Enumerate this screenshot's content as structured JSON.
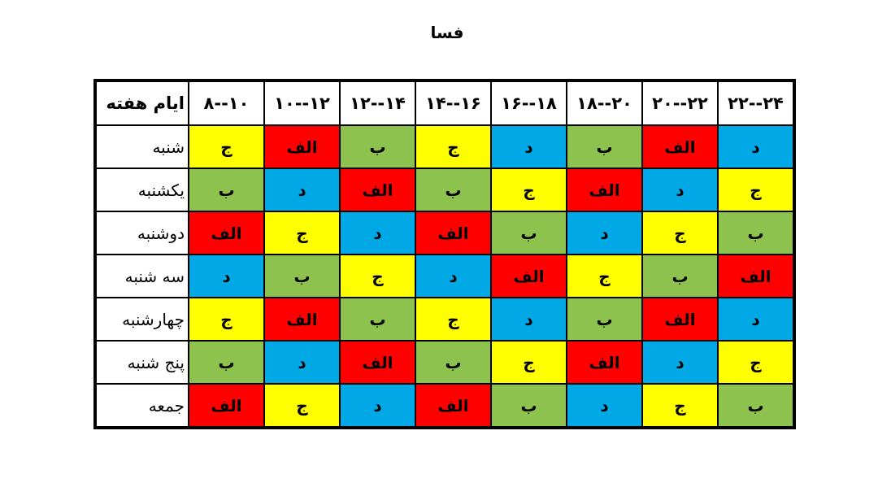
{
  "header": {
    "title": "فسا"
  },
  "table": {
    "corner": "ایام هفته",
    "slots": [
      "۸--۱۰",
      "۱۰--۱۲",
      "۱۲--۱۴",
      "۱۴--۱۶",
      "۱۶--۱۸",
      "۱۸--۲۰",
      "۲۰--۲۲",
      "۲۲--۲۴"
    ],
    "rows": [
      {
        "day": "شنبه",
        "cells": [
          "ج",
          "الف",
          "ب",
          "ج",
          "د",
          "ب",
          "الف",
          "د"
        ],
        "colors": [
          "#ffff00",
          "#ff0000",
          "#8dc24f",
          "#ffff00",
          "#00a9e6",
          "#8dc24f",
          "#ff0000",
          "#00a9e6"
        ]
      },
      {
        "day": "یکشنبه",
        "cells": [
          "ب",
          "د",
          "الف",
          "ب",
          "ج",
          "الف",
          "د",
          "ج"
        ],
        "colors": [
          "#8dc24f",
          "#00a9e6",
          "#ff0000",
          "#8dc24f",
          "#ffff00",
          "#ff0000",
          "#00a9e6",
          "#ffff00"
        ]
      },
      {
        "day": "دوشنبه",
        "cells": [
          "الف",
          "ج",
          "د",
          "الف",
          "ب",
          "د",
          "ج",
          "ب"
        ],
        "colors": [
          "#ff0000",
          "#ffff00",
          "#00a9e6",
          "#ff0000",
          "#8dc24f",
          "#00a9e6",
          "#ffff00",
          "#8dc24f"
        ]
      },
      {
        "day": "سه شنبه",
        "cells": [
          "د",
          "ب",
          "ج",
          "د",
          "الف",
          "ج",
          "ب",
          "الف"
        ],
        "colors": [
          "#00a9e6",
          "#8dc24f",
          "#ffff00",
          "#00a9e6",
          "#ff0000",
          "#ffff00",
          "#8dc24f",
          "#ff0000"
        ]
      },
      {
        "day": "چهارشنبه",
        "cells": [
          "ج",
          "الف",
          "ب",
          "ج",
          "د",
          "ب",
          "الف",
          "د"
        ],
        "colors": [
          "#ffff00",
          "#ff0000",
          "#8dc24f",
          "#ffff00",
          "#00a9e6",
          "#8dc24f",
          "#ff0000",
          "#00a9e6"
        ]
      },
      {
        "day": "پنج شنبه",
        "cells": [
          "ب",
          "د",
          "الف",
          "ب",
          "ج",
          "الف",
          "د",
          "ج"
        ],
        "colors": [
          "#8dc24f",
          "#00a9e6",
          "#ff0000",
          "#8dc24f",
          "#ffff00",
          "#ff0000",
          "#00a9e6",
          "#ffff00"
        ]
      },
      {
        "day": "جمعه",
        "cells": [
          "الف",
          "ج",
          "د",
          "الف",
          "ب",
          "د",
          "ج",
          "ب"
        ],
        "colors": [
          "#ff0000",
          "#ffff00",
          "#00a9e6",
          "#ff0000",
          "#8dc24f",
          "#00a9e6",
          "#ffff00",
          "#8dc24f"
        ]
      }
    ]
  }
}
